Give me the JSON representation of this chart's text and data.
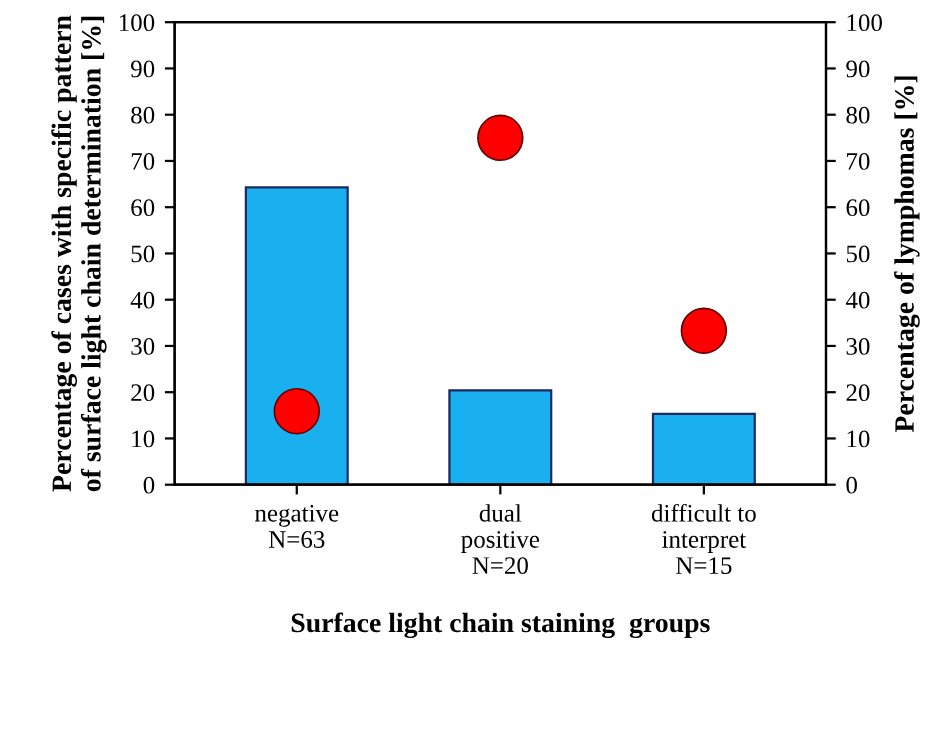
{
  "chart_data": {
    "type": "bar",
    "xlabel": "Surface light chain staining  groups",
    "ylabel": "Percentage of cases with specific pattern\nof surface light chain determination [%]",
    "y2label": "Percentage of lymphomas [%]",
    "categories": [
      "negative\nN=63",
      "dual\npositive\nN=20",
      "difficult to\ninterpret\nN=15"
    ],
    "series": [
      {
        "color": "#1ab0f0",
        "values": [
          64.3,
          20.4,
          15.3
        ]
      },
      {
        "type": "scatter",
        "axis": "y2",
        "color": "#ff0000",
        "x": [
          "negative\nN=63",
          "dual\npositive\nN=20",
          "difficult to\ninterpret\nN=15"
        ],
        "values": [
          15.9,
          75.0,
          33.3
        ]
      }
    ],
    "ylim": [
      0,
      100
    ],
    "yticks": [
      0,
      10,
      20,
      30,
      40,
      50,
      60,
      70,
      80,
      90,
      100
    ],
    "y2lim": [
      0,
      100
    ],
    "y2ticks": [
      0,
      10,
      20,
      30,
      40,
      50,
      60,
      70,
      80,
      90,
      100
    ],
    "marker": "circle",
    "grid": false,
    "legend": false
  }
}
